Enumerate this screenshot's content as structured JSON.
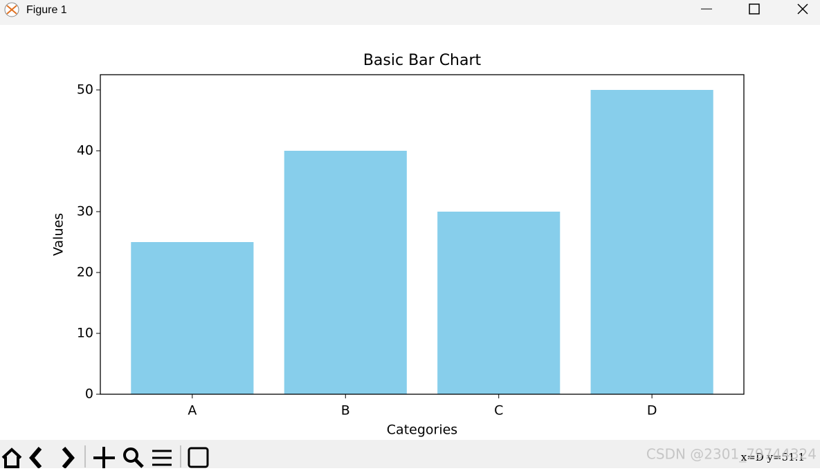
{
  "window": {
    "title": "Figure 1",
    "status": "x=D y=51.1",
    "watermark": "CSDN @2301_79744324"
  },
  "chart_data": {
    "type": "bar",
    "title": "Basic Bar Chart",
    "x_label": "Categories",
    "y_label": "Values",
    "categories": [
      "A",
      "B",
      "C",
      "D"
    ],
    "values": [
      25,
      40,
      30,
      50
    ],
    "color": "#87ceeb",
    "ylim": [
      0,
      52.5
    ],
    "yticks": [
      0,
      10,
      20,
      30,
      40,
      50
    ],
    "grid": false
  }
}
